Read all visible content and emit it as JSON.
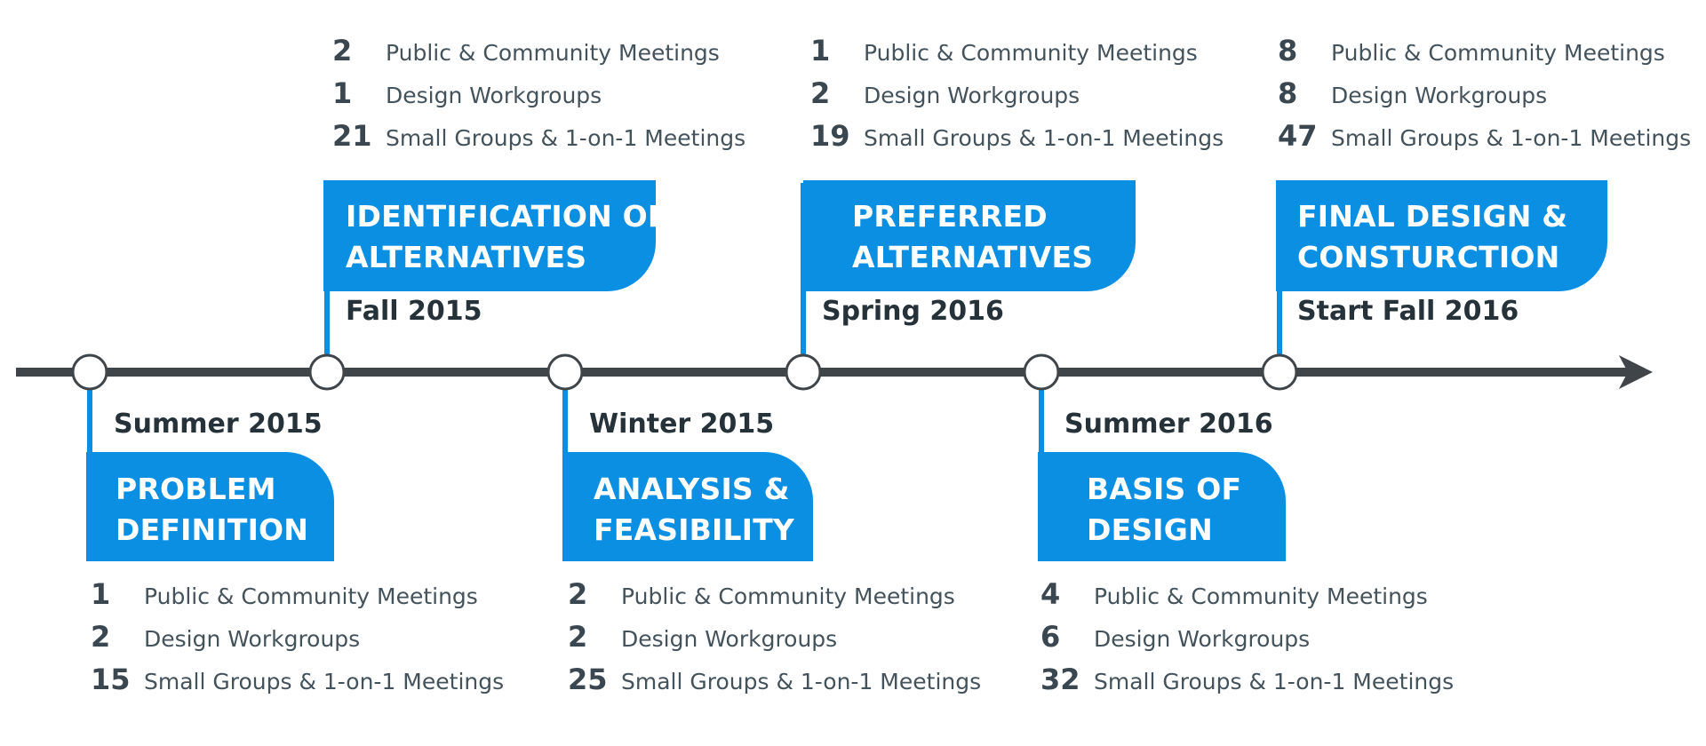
{
  "colors": {
    "accent": "#0b8fe3",
    "axis": "#3f4549",
    "text": "#2e3840"
  },
  "phases": [
    {
      "title_lines": [
        "PROBLEM",
        "DEFINITION"
      ],
      "date": "Summer 2015",
      "stats": [
        {
          "value": "1",
          "label": "Public & Community Meetings"
        },
        {
          "value": "2",
          "label": "Design Workgroups"
        },
        {
          "value": "15",
          "label": "Small Groups & 1-on-1 Meetings"
        }
      ]
    },
    {
      "title_lines": [
        "IDENTIFICATION OF",
        "ALTERNATIVES"
      ],
      "date": "Fall 2015",
      "stats": [
        {
          "value": "2",
          "label": "Public & Community Meetings"
        },
        {
          "value": "1",
          "label": "Design Workgroups"
        },
        {
          "value": "21",
          "label": "Small Groups & 1-on-1 Meetings"
        }
      ]
    },
    {
      "title_lines": [
        "ANALYSIS &",
        "FEASIBILITY"
      ],
      "date": "Winter 2015",
      "stats": [
        {
          "value": "2",
          "label": "Public & Community Meetings"
        },
        {
          "value": "2",
          "label": "Design Workgroups"
        },
        {
          "value": "25",
          "label": "Small Groups & 1-on-1 Meetings"
        }
      ]
    },
    {
      "title_lines": [
        "PREFERRED",
        "ALTERNATIVES"
      ],
      "date": "Spring 2016",
      "stats": [
        {
          "value": "1",
          "label": "Public & Community Meetings"
        },
        {
          "value": "2",
          "label": "Design Workgroups"
        },
        {
          "value": "19",
          "label": "Small Groups & 1-on-1 Meetings"
        }
      ]
    },
    {
      "title_lines": [
        "BASIS OF",
        "DESIGN"
      ],
      "date": "Summer 2016",
      "stats": [
        {
          "value": "4",
          "label": "Public & Community Meetings"
        },
        {
          "value": "6",
          "label": "Design Workgroups"
        },
        {
          "value": "32",
          "label": "Small Groups & 1-on-1 Meetings"
        }
      ]
    },
    {
      "title_lines": [
        "FINAL DESIGN &",
        "CONSTURCTION"
      ],
      "date": "Start Fall 2016",
      "stats": [
        {
          "value": "8",
          "label": "Public & Community Meetings"
        },
        {
          "value": "8",
          "label": "Design Workgroups"
        },
        {
          "value": "47",
          "label": "Small Groups & 1-on-1 Meetings"
        }
      ]
    }
  ]
}
